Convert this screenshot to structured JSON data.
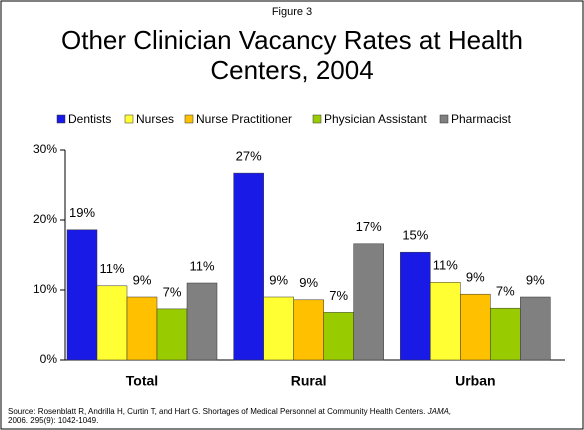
{
  "chart_data": {
    "type": "bar",
    "figure_label": "Figure 3",
    "title": [
      "Other Clinician Vacancy Rates at Health",
      "Centers, 2004"
    ],
    "categories": [
      "Total",
      "Rural",
      "Urban"
    ],
    "series": [
      {
        "name": "Dentists",
        "color": "#1a1ae6",
        "values": [
          18.6,
          26.7,
          15.4
        ],
        "value_labels": [
          "19%",
          "27%",
          "15%"
        ]
      },
      {
        "name": "Nurses",
        "color": "#ffff33",
        "values": [
          10.6,
          9.0,
          11.1
        ],
        "value_labels": [
          "11%",
          "9%",
          "11%"
        ]
      },
      {
        "name": "Nurse Practitioner",
        "color": "#ffc000",
        "values": [
          9.0,
          8.6,
          9.4
        ],
        "value_labels": [
          "9%",
          "9%",
          "9%"
        ]
      },
      {
        "name": "Physician Assistant",
        "color": "#99cc00",
        "values": [
          7.3,
          6.8,
          7.4
        ],
        "value_labels": [
          "7%",
          "7%",
          "7%"
        ]
      },
      {
        "name": "Pharmacist",
        "color": "#808080",
        "values": [
          11.0,
          16.6,
          9.0
        ],
        "value_labels": [
          "11%",
          "17%",
          "9%"
        ]
      }
    ],
    "ylim": [
      0,
      30
    ],
    "yticks": [
      {
        "value": 0,
        "label": "0%"
      },
      {
        "value": 10,
        "label": "10%"
      },
      {
        "value": 20,
        "label": "20%"
      },
      {
        "value": 30,
        "label": "30%"
      }
    ],
    "legend": "top",
    "source": {
      "text": "Source: Rosenblatt R, Andrilla H, Curtin T, and Hart G. Shortages of Medical Personnel at Community Health Centers.",
      "journal": "JAMA,",
      "citation": "2006. 295(9): 1042-1049."
    }
  }
}
